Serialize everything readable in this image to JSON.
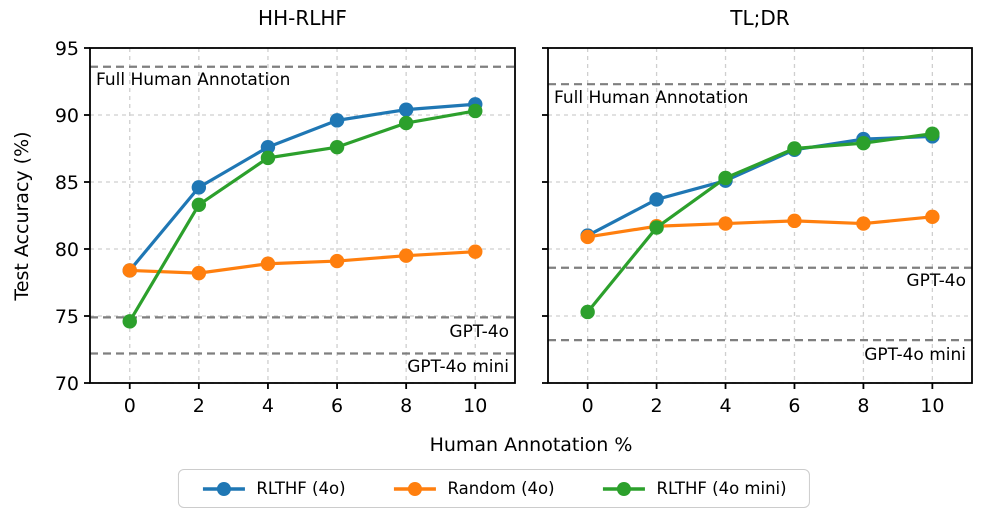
{
  "figure": {
    "xlabel": "Human Annotation %",
    "ylabel": "Test Accuracy (%)",
    "legend": [
      {
        "label": "RLTHF (4o)",
        "color": "#1f77b4"
      },
      {
        "label": "Random (4o)",
        "color": "#ff7f0e"
      },
      {
        "label": "RLTHF (4o mini)",
        "color": "#2ca02c"
      }
    ]
  },
  "chart_data": [
    {
      "type": "line",
      "title": "HH-RLHF",
      "xlabel": "Human Annotation %",
      "ylabel": "Test Accuracy (%)",
      "x": [
        0,
        2,
        4,
        6,
        8,
        10
      ],
      "xticks": [
        0,
        2,
        4,
        6,
        8,
        10
      ],
      "yticks": [
        70,
        75,
        80,
        85,
        90,
        95
      ],
      "xlim": [
        -1.15,
        11.15
      ],
      "ylim": [
        70,
        95
      ],
      "grid": true,
      "series": [
        {
          "name": "RLTHF (4o)",
          "color": "#1f77b4",
          "values": [
            78.4,
            84.6,
            87.6,
            89.6,
            90.4,
            90.8
          ]
        },
        {
          "name": "Random (4o)",
          "color": "#ff7f0e",
          "values": [
            78.4,
            78.2,
            78.9,
            79.1,
            79.5,
            79.8
          ]
        },
        {
          "name": "RLTHF (4o mini)",
          "color": "#2ca02c",
          "values": [
            74.6,
            83.3,
            86.8,
            87.6,
            89.4,
            90.3
          ]
        }
      ],
      "reference_lines": [
        {
          "label": "Full Human Annotation",
          "value": 93.6,
          "align": "left"
        },
        {
          "label": "GPT-4o",
          "value": 74.9,
          "align": "right"
        },
        {
          "label": "GPT-4o mini",
          "value": 72.2,
          "align": "right"
        }
      ]
    },
    {
      "type": "line",
      "title": "TL;DR",
      "xlabel": "Human Annotation %",
      "ylabel": "Test Accuracy (%)",
      "x": [
        0,
        2,
        4,
        6,
        8,
        10
      ],
      "xticks": [
        0,
        2,
        4,
        6,
        8,
        10
      ],
      "yticks": [
        70,
        75,
        80,
        85,
        90,
        95
      ],
      "xlim": [
        -1.15,
        11.15
      ],
      "ylim": [
        70,
        95
      ],
      "grid": true,
      "series": [
        {
          "name": "RLTHF (4o)",
          "color": "#1f77b4",
          "values": [
            81.0,
            83.7,
            85.1,
            87.4,
            88.2,
            88.4
          ]
        },
        {
          "name": "Random (4o)",
          "color": "#ff7f0e",
          "values": [
            80.9,
            81.7,
            81.9,
            82.1,
            81.9,
            82.4
          ]
        },
        {
          "name": "RLTHF (4o mini)",
          "color": "#2ca02c",
          "values": [
            75.3,
            81.6,
            85.3,
            87.5,
            87.9,
            88.6
          ]
        }
      ],
      "reference_lines": [
        {
          "label": "Full Human Annotation",
          "value": 92.3,
          "align": "left"
        },
        {
          "label": "GPT-4o",
          "value": 78.6,
          "align": "right"
        },
        {
          "label": "GPT-4o mini",
          "value": 73.2,
          "align": "right"
        }
      ]
    }
  ]
}
